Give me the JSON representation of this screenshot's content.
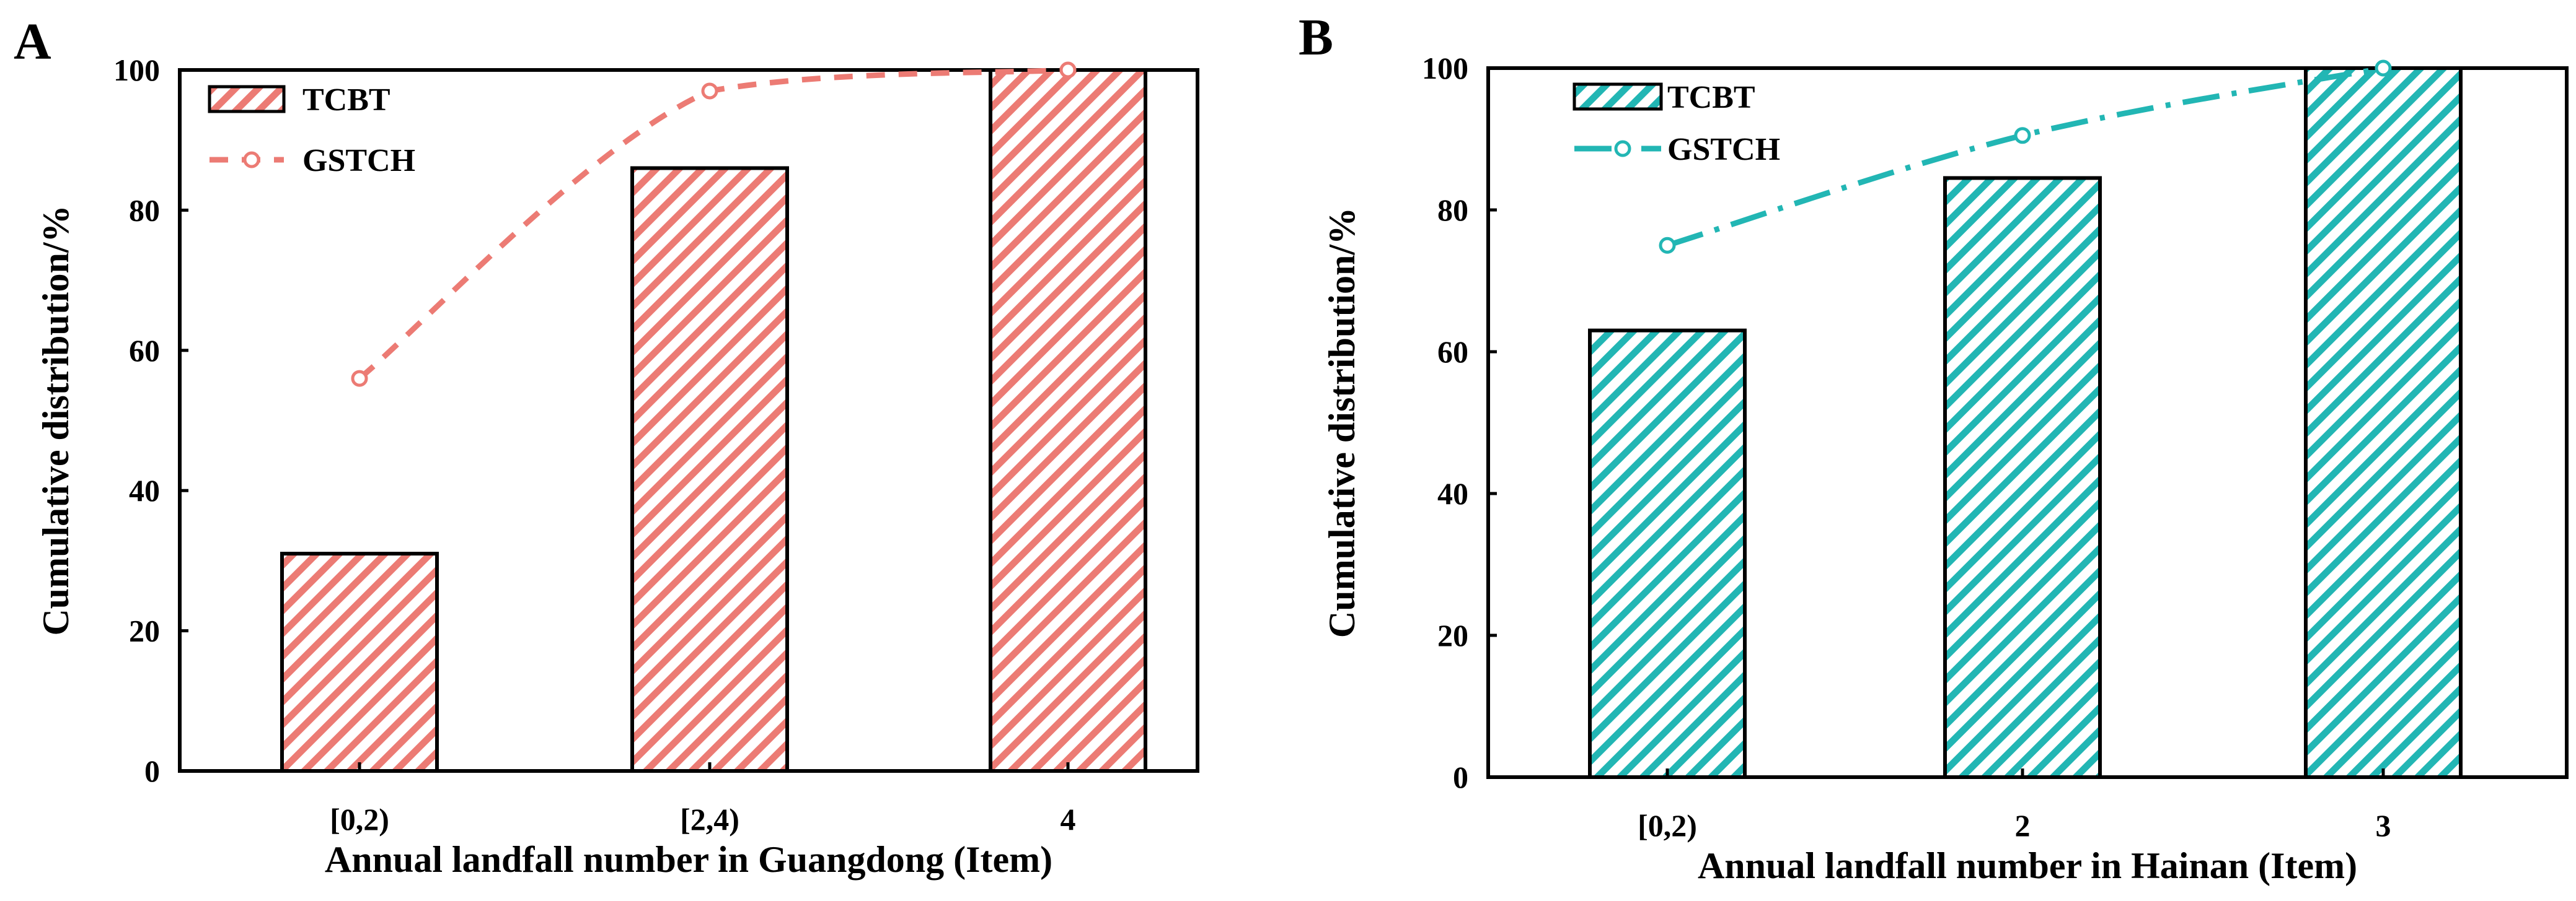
{
  "chart_data": [
    {
      "panel": "A",
      "type": "bar",
      "categories": [
        "[0,2)",
        "[2,4)",
        "4"
      ],
      "series": [
        {
          "name": "TCBT",
          "kind": "bar",
          "values": [
            31,
            86,
            100
          ]
        },
        {
          "name": "GSTCH",
          "kind": "line",
          "style": "dashed",
          "values": [
            56,
            97,
            100
          ]
        }
      ],
      "title": "",
      "xlabel": "Annual landfall number in Guangdong (Item)",
      "ylabel": "Cumulative distribution/%",
      "ylim": [
        0,
        100
      ],
      "yticks": [
        0,
        20,
        40,
        60,
        80,
        100
      ],
      "legend": "top-left",
      "color": "#ec7b74"
    },
    {
      "panel": "B",
      "type": "bar",
      "categories": [
        "[0,2)",
        "2",
        "3"
      ],
      "series": [
        {
          "name": "TCBT",
          "kind": "bar",
          "values": [
            63,
            84.5,
            100
          ]
        },
        {
          "name": "GSTCH",
          "kind": "line",
          "style": "dash-dot",
          "values": [
            75,
            90.5,
            100
          ]
        }
      ],
      "title": "",
      "xlabel": "Annual landfall number in Hainan (Item)",
      "ylabel": "Cumulative distribution/%",
      "ylim": [
        0,
        100
      ],
      "yticks": [
        0,
        20,
        40,
        60,
        80,
        100
      ],
      "legend": "top-left",
      "color": "#22b6b4"
    }
  ]
}
